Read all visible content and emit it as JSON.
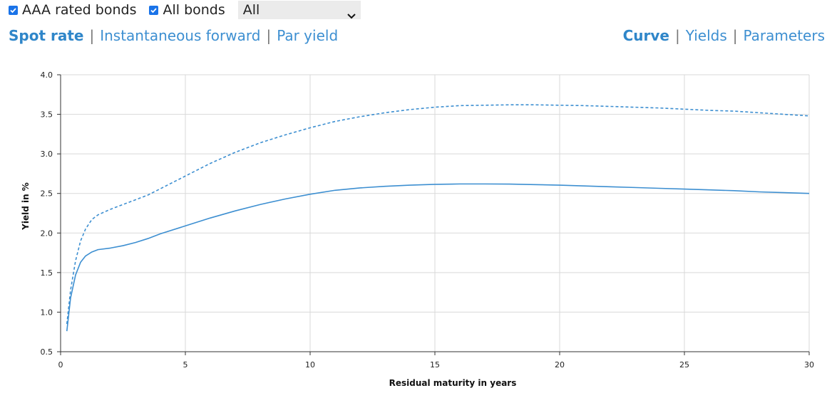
{
  "controls": {
    "aaa_checkbox_label": "AAA rated bonds",
    "aaa_checked": true,
    "all_checkbox_label": "All bonds",
    "all_checked": true,
    "select_value": "All"
  },
  "left_links": [
    {
      "label": "Spot rate",
      "active": true
    },
    {
      "label": "Instantaneous forward",
      "active": false
    },
    {
      "label": "Par yield",
      "active": false
    }
  ],
  "right_links": [
    {
      "label": "Curve",
      "active": true
    },
    {
      "label": "Yields",
      "active": false
    },
    {
      "label": "Parameters",
      "active": false
    }
  ],
  "separator": "|",
  "colors": {
    "accent": "#2f86c9",
    "line": "#3d8fd1",
    "grid": "#d9d9d9",
    "checkbox": "#1a73e8"
  },
  "chart_data": {
    "type": "line",
    "title": "",
    "xlabel": "Residual maturity in years",
    "ylabel": "Yield in %",
    "xlim": [
      0,
      30
    ],
    "ylim": [
      0.5,
      4.0
    ],
    "xticks": [
      0,
      5,
      10,
      15,
      20,
      25,
      30
    ],
    "yticks": [
      "0.5",
      "1.0",
      "1.5",
      "2.0",
      "2.5",
      "3.0",
      "3.5",
      "4.0"
    ],
    "grid": true,
    "series": [
      {
        "style": "dashed",
        "x": [
          0.25,
          0.4,
          0.6,
          0.8,
          1.0,
          1.25,
          1.5,
          2.0,
          2.5,
          3.0,
          3.5,
          4.0,
          5.0,
          6.0,
          7.0,
          8.0,
          9.0,
          10.0,
          11.0,
          12.0,
          13.0,
          14.0,
          15.0,
          16.0,
          17.0,
          18.0,
          19.0,
          20.0,
          21.0,
          22.0,
          23.0,
          24.0,
          25.0,
          26.0,
          27.0,
          28.0,
          29.0,
          30.0
        ],
        "y": [
          0.85,
          1.28,
          1.65,
          1.9,
          2.05,
          2.17,
          2.23,
          2.3,
          2.36,
          2.42,
          2.48,
          2.56,
          2.72,
          2.88,
          3.02,
          3.14,
          3.24,
          3.33,
          3.41,
          3.47,
          3.52,
          3.56,
          3.59,
          3.61,
          3.615,
          3.62,
          3.62,
          3.615,
          3.61,
          3.6,
          3.59,
          3.58,
          3.565,
          3.55,
          3.54,
          3.52,
          3.5,
          3.48
        ]
      },
      {
        "style": "solid",
        "x": [
          0.25,
          0.4,
          0.6,
          0.8,
          1.0,
          1.25,
          1.5,
          2.0,
          2.5,
          3.0,
          3.5,
          4.0,
          5.0,
          6.0,
          7.0,
          8.0,
          9.0,
          10.0,
          11.0,
          12.0,
          13.0,
          14.0,
          15.0,
          16.0,
          17.0,
          18.0,
          19.0,
          20.0,
          21.0,
          22.0,
          23.0,
          24.0,
          25.0,
          26.0,
          27.0,
          28.0,
          29.0,
          30.0
        ],
        "y": [
          0.76,
          1.18,
          1.47,
          1.63,
          1.71,
          1.76,
          1.79,
          1.81,
          1.84,
          1.88,
          1.93,
          1.99,
          2.09,
          2.19,
          2.28,
          2.36,
          2.43,
          2.49,
          2.54,
          2.57,
          2.59,
          2.605,
          2.615,
          2.62,
          2.62,
          2.618,
          2.612,
          2.605,
          2.595,
          2.585,
          2.575,
          2.565,
          2.555,
          2.545,
          2.535,
          2.52,
          2.51,
          2.5
        ]
      }
    ]
  }
}
